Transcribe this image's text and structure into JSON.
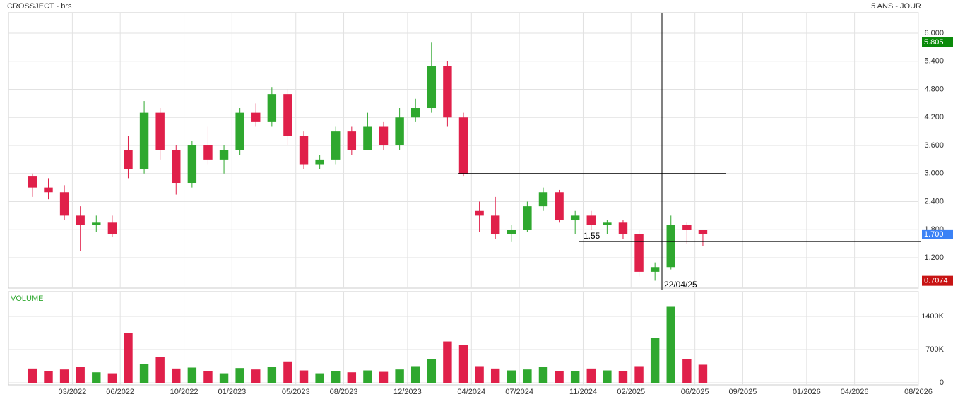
{
  "chart_data": [
    {
      "type": "candlestick",
      "title": "CROSSJECT - brs",
      "subtitle": "5 ANS - JOUR",
      "up_color": "#2fa82f",
      "down_color": "#e0204a",
      "x": [
        "12/2021",
        "01/2022",
        "02/2022",
        "03/2022",
        "04/2022",
        "05/2022",
        "06/2022",
        "07/2022",
        "08/2022",
        "09/2022",
        "10/2022",
        "11/2022",
        "12/2022",
        "01/2023",
        "02/2023",
        "03/2023",
        "04/2023",
        "05/2023",
        "06/2023",
        "07/2023",
        "08/2023",
        "09/2023",
        "10/2023",
        "11/2023",
        "12/2023",
        "01/2024",
        "02/2024",
        "03/2024",
        "04/2024",
        "05/2024",
        "06/2024",
        "07/2024",
        "08/2024",
        "09/2024",
        "10/2024",
        "11/2024",
        "12/2024",
        "01/2025",
        "02/2025",
        "03/2025",
        "04/2025",
        "05/2025",
        "06/2025"
      ],
      "open": [
        2.95,
        2.7,
        2.6,
        2.1,
        1.9,
        1.95,
        3.5,
        3.1,
        4.3,
        3.5,
        2.8,
        3.6,
        3.3,
        3.5,
        4.3,
        4.1,
        4.7,
        3.8,
        3.2,
        3.3,
        3.9,
        3.5,
        4.0,
        3.6,
        4.2,
        4.4,
        5.3,
        4.2,
        2.2,
        2.1,
        1.7,
        1.8,
        2.3,
        2.6,
        2.0,
        2.1,
        1.9,
        1.95,
        1.7,
        0.9,
        1.0,
        1.9,
        1.8
      ],
      "high": [
        3.0,
        2.9,
        2.75,
        2.3,
        2.1,
        2.1,
        3.8,
        4.55,
        4.4,
        3.6,
        3.7,
        4.0,
        3.6,
        4.4,
        4.5,
        4.85,
        4.8,
        3.9,
        3.4,
        4.0,
        4.0,
        4.3,
        4.1,
        4.4,
        4.6,
        5.8,
        5.4,
        4.3,
        2.4,
        2.5,
        1.9,
        2.4,
        2.7,
        2.65,
        2.2,
        2.2,
        2.0,
        2.0,
        1.8,
        1.1,
        2.1,
        1.95,
        1.8
      ],
      "low": [
        2.5,
        2.45,
        2.0,
        1.35,
        1.75,
        1.65,
        2.9,
        3.0,
        3.3,
        2.55,
        2.7,
        3.2,
        3.0,
        3.4,
        4.0,
        4.0,
        3.6,
        3.1,
        3.1,
        3.2,
        3.4,
        3.5,
        3.5,
        3.5,
        4.1,
        4.3,
        4.0,
        2.95,
        1.75,
        1.6,
        1.55,
        1.75,
        2.2,
        1.95,
        1.7,
        1.8,
        1.7,
        1.6,
        0.8,
        0.71,
        0.95,
        1.5,
        1.45
      ],
      "close": [
        2.7,
        2.6,
        2.1,
        1.9,
        1.95,
        1.7,
        3.1,
        4.3,
        3.5,
        2.8,
        3.6,
        3.3,
        3.5,
        4.3,
        4.1,
        4.7,
        3.8,
        3.2,
        3.3,
        3.9,
        3.5,
        4.0,
        3.6,
        4.2,
        4.4,
        5.3,
        4.2,
        3.0,
        2.1,
        1.7,
        1.8,
        2.3,
        2.6,
        2.0,
        2.1,
        1.9,
        1.95,
        1.7,
        0.9,
        1.0,
        1.9,
        1.8,
        1.7
      ],
      "xlim": [
        "11/2021",
        "08/2026"
      ],
      "xticks": [
        "03/2022",
        "06/2022",
        "10/2022",
        "01/2023",
        "05/2023",
        "08/2023",
        "12/2023",
        "04/2024",
        "07/2024",
        "11/2024",
        "02/2025",
        "06/2025",
        "09/2025",
        "01/2026",
        "04/2026",
        "08/2026"
      ],
      "ylim": [
        0.551,
        6.438
      ],
      "yticks": [
        {
          "value": 1.2,
          "label": "1.200"
        },
        {
          "value": 1.8,
          "label": "1.800"
        },
        {
          "value": 2.4,
          "label": "2.400"
        },
        {
          "value": 3.0,
          "label": "3.000"
        },
        {
          "value": 3.6,
          "label": "3.600"
        },
        {
          "value": 4.2,
          "label": "4.200"
        },
        {
          "value": 4.8,
          "label": "4.800"
        },
        {
          "value": 5.4,
          "label": "5.400"
        },
        {
          "value": 6.0,
          "label": "6.000"
        }
      ],
      "grid": true,
      "price_tags": [
        {
          "value": 5.805,
          "label": "5.805",
          "color": "#0a8a0a"
        },
        {
          "value": 1.7,
          "label": "1.700",
          "color": "#3b82f6"
        },
        {
          "value": 0.7074,
          "label": "0.7074",
          "color": "#c81414"
        }
      ],
      "levels": [
        {
          "value": 3.0
        },
        {
          "value": 1.55,
          "label": "1.55"
        }
      ],
      "crosshair_label": "22/04/25"
    },
    {
      "type": "bar",
      "title": "VOLUME",
      "up_color": "#2fa82f",
      "down_color": "#e0204a",
      "x": [
        "12/2021",
        "01/2022",
        "02/2022",
        "03/2022",
        "04/2022",
        "05/2022",
        "06/2022",
        "07/2022",
        "08/2022",
        "09/2022",
        "10/2022",
        "11/2022",
        "12/2022",
        "01/2023",
        "02/2023",
        "03/2023",
        "04/2023",
        "05/2023",
        "06/2023",
        "07/2023",
        "08/2023",
        "09/2023",
        "10/2023",
        "11/2023",
        "12/2023",
        "01/2024",
        "02/2024",
        "03/2024",
        "04/2024",
        "05/2024",
        "06/2024",
        "07/2024",
        "08/2024",
        "09/2024",
        "10/2024",
        "11/2024",
        "12/2024",
        "01/2025",
        "02/2025",
        "03/2025",
        "04/2025",
        "05/2025",
        "06/2025"
      ],
      "values": [
        300000,
        250000,
        280000,
        330000,
        220000,
        200000,
        1050000,
        400000,
        550000,
        300000,
        320000,
        250000,
        200000,
        310000,
        280000,
        330000,
        450000,
        260000,
        200000,
        240000,
        220000,
        260000,
        230000,
        280000,
        350000,
        500000,
        870000,
        800000,
        350000,
        300000,
        260000,
        280000,
        330000,
        250000,
        240000,
        300000,
        260000,
        240000,
        350000,
        950000,
        1600000,
        500000,
        380000
      ],
      "xlim": [
        "11/2021",
        "08/2026"
      ],
      "ylim": [
        0,
        1920000
      ],
      "yticks": [
        0,
        {
          "value": 700000,
          "label": "700K"
        },
        {
          "value": 1400000,
          "label": "1400K"
        }
      ],
      "grid": true
    }
  ]
}
